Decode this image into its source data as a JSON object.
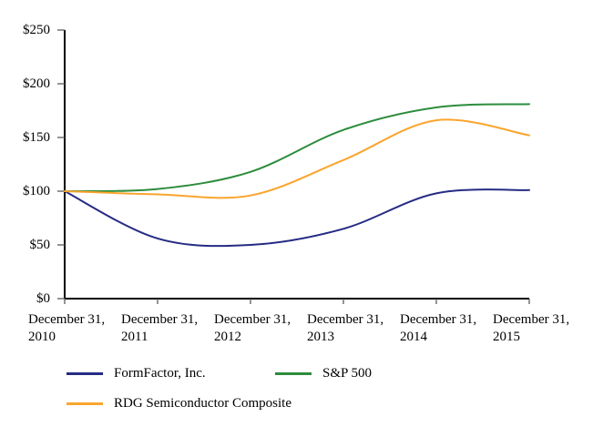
{
  "chart_data": {
    "type": "line",
    "title": "",
    "xlabel": "",
    "ylabel": "",
    "ylim": [
      0,
      250
    ],
    "grid": false,
    "legend_position": "below-chart",
    "axis_color": "#000000",
    "tick_color": "#666666",
    "x": [
      "December 31, 2010",
      "December 31, 2011",
      "December 31, 2012",
      "December 31, 2013",
      "December 31, 2014",
      "December 31, 2015"
    ],
    "x_tick_labels": [
      {
        "top": "December 31,",
        "bottom": "2010"
      },
      {
        "top": "December 31,",
        "bottom": "2011"
      },
      {
        "top": "December 31,",
        "bottom": "2012"
      },
      {
        "top": "December 31,",
        "bottom": "2013"
      },
      {
        "top": "December 31,",
        "bottom": "2014"
      },
      {
        "top": "December 31,",
        "bottom": "2015"
      }
    ],
    "y_ticks": [
      {
        "label": "$250",
        "value": 250
      },
      {
        "label": "$200",
        "value": 200
      },
      {
        "label": "$150",
        "value": 150
      },
      {
        "label": "$100",
        "value": 100
      },
      {
        "label": "$50",
        "value": 50
      },
      {
        "label": "$0",
        "value": 0
      }
    ],
    "series": [
      {
        "name": "FormFactor, Inc.",
        "color": "#252B84",
        "values": [
          100,
          56,
          50,
          65,
          98,
          101
        ]
      },
      {
        "name": "S&P 500",
        "color": "#2D8C3C",
        "values": [
          100,
          102,
          118,
          157,
          178,
          181
        ]
      },
      {
        "name": "RDG Semiconductor Composite",
        "color": "#FAA52D",
        "values": [
          100,
          97,
          96,
          129,
          166,
          152
        ]
      }
    ]
  }
}
